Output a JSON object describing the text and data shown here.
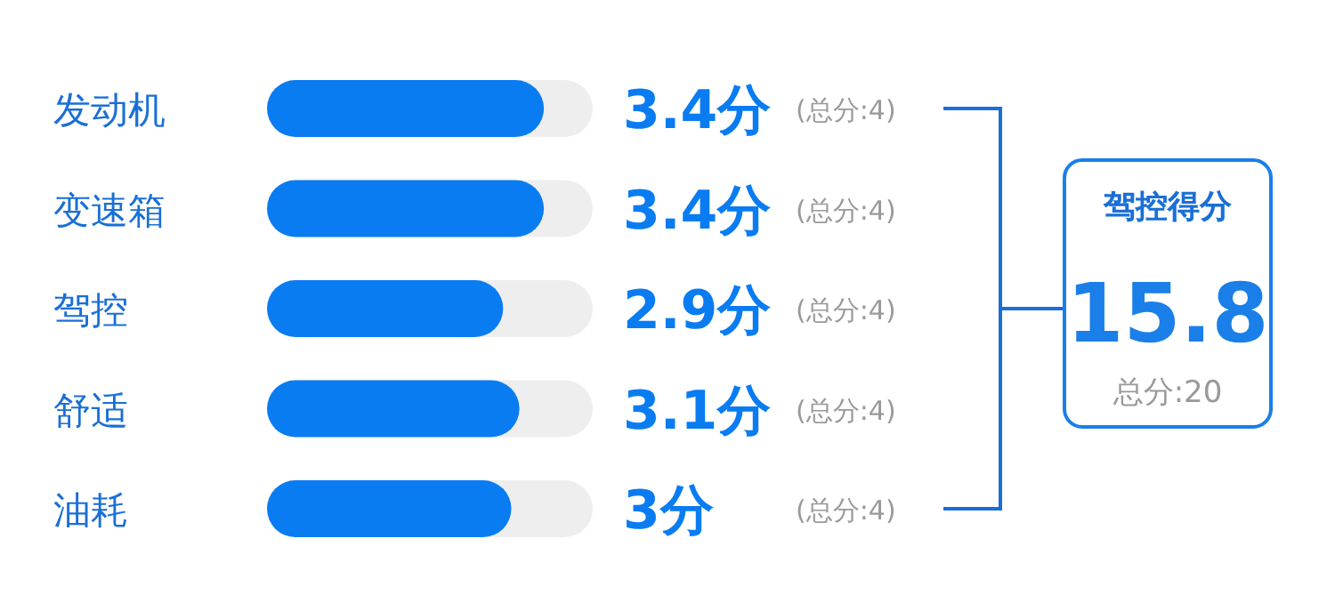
{
  "chart_data": {
    "type": "bar",
    "orientation": "horizontal",
    "categories": [
      "发动机",
      "变速箱",
      "驾控",
      "舒适",
      "油耗"
    ],
    "values": [
      3.4,
      3.4,
      2.9,
      3.1,
      3
    ],
    "value_labels": [
      "3.4分",
      "3.4分",
      "2.9分",
      "3.1分",
      "3分"
    ],
    "color": "#0a7cf2",
    "xlim": [
      0,
      4
    ],
    "annotations": [
      "(总分:4)",
      "(总分:4)",
      "(总分:4)",
      "(总分:4)",
      "(总分:4)",
      "驾控得分",
      "15.8",
      "总分:20"
    ]
  }
}
